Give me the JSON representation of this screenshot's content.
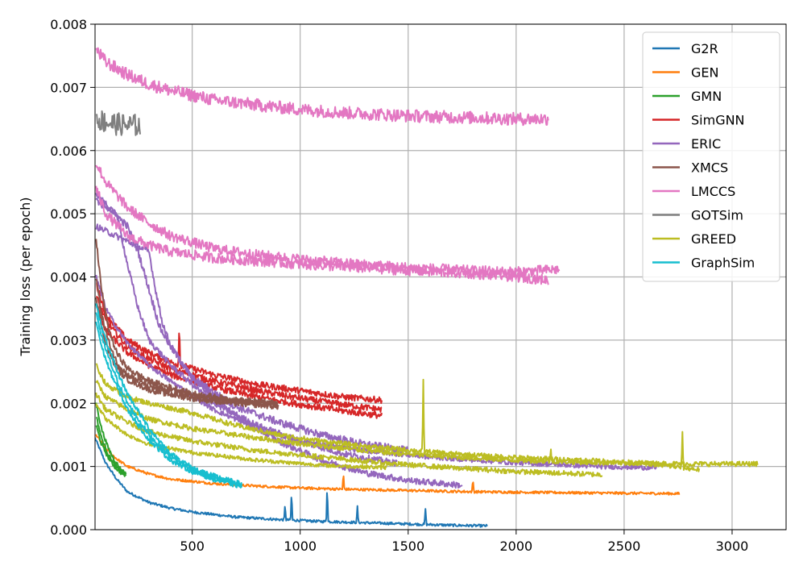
{
  "chart_data": {
    "type": "line",
    "title": "",
    "xlabel": "",
    "ylabel": "Training loss (per epoch)",
    "xlim": [
      50,
      3250
    ],
    "ylim": [
      0.0,
      0.008
    ],
    "x_ticks": [
      500,
      1000,
      1500,
      2000,
      2500,
      3000
    ],
    "y_ticks": [
      0.0,
      0.001,
      0.002,
      0.003,
      0.004,
      0.005,
      0.006,
      0.007,
      0.008
    ],
    "x_tick_labels": [
      "500",
      "1000",
      "1500",
      "2000",
      "2500",
      "3000"
    ],
    "y_tick_labels": [
      "0.000",
      "0.001",
      "0.002",
      "0.003",
      "0.004",
      "0.005",
      "0.006",
      "0.007",
      "0.008"
    ],
    "grid": true,
    "legend_position": "top-right",
    "series": [
      {
        "name": "G2R",
        "color": "#1f77b4",
        "runs": [
          {
            "x": [
              50,
              100,
              150,
              200,
              300,
              400,
              500,
              700,
              900,
              1100,
              1300,
              1500,
              1700,
              1870
            ],
            "y": [
              0.00145,
              0.00105,
              0.0008,
              0.0006,
              0.00043,
              0.00034,
              0.00028,
              0.0002,
              0.00016,
              0.00013,
              0.00011,
              9e-05,
              7e-05,
              6e-05
            ],
            "noise": 2e-05,
            "spikes": [
              [
                930,
                0.00025
              ],
              [
                960,
                0.00045
              ],
              [
                1125,
                0.0006
              ],
              [
                1265,
                0.00025
              ],
              [
                1580,
                0.00025
              ]
            ]
          }
        ]
      },
      {
        "name": "GEN",
        "color": "#ff7f0e",
        "runs": [
          {
            "x": [
              55,
              100,
              150,
              200,
              300,
              400,
              600,
              800,
              1000,
              1200,
              1500,
              1800,
              2100,
              2400,
              2760
            ],
            "y": [
              0.0015,
              0.00128,
              0.00112,
              0.001,
              0.00088,
              0.0008,
              0.00073,
              0.00069,
              0.00066,
              0.00064,
              0.00062,
              0.0006,
              0.00059,
              0.00058,
              0.00057
            ],
            "noise": 2e-05,
            "spikes": [
              [
                1200,
                0.00025
              ],
              [
                1800,
                0.0002
              ]
            ]
          }
        ]
      },
      {
        "name": "GMN",
        "color": "#2ca02c",
        "runs": [
          {
            "x": [
              55,
              80,
              110,
              140,
              170,
              195
            ],
            "y": [
              0.002,
              0.0016,
              0.0013,
              0.0011,
              0.00095,
              0.00088
            ],
            "noise": 3e-05,
            "spikes": []
          },
          {
            "x": [
              55,
              80,
              110,
              140,
              170,
              195
            ],
            "y": [
              0.0018,
              0.00145,
              0.0012,
              0.00102,
              0.00092,
              0.00086
            ],
            "noise": 3e-05,
            "spikes": []
          },
          {
            "x": [
              55,
              80,
              110,
              140,
              170,
              195
            ],
            "y": [
              0.00165,
              0.00135,
              0.00115,
              0.001,
              0.0009,
              0.00085
            ],
            "noise": 3e-05,
            "spikes": []
          }
        ]
      },
      {
        "name": "SimGNN",
        "color": "#d62728",
        "runs": [
          {
            "x": [
              55,
              100,
              200,
              300,
              400,
              600,
              800,
              1000,
              1200,
              1380
            ],
            "y": [
              0.0039,
              0.0034,
              0.003,
              0.0028,
              0.00265,
              0.00245,
              0.0023,
              0.0022,
              0.0021,
              0.00205
            ],
            "noise": 5e-05,
            "spikes": [
              [
                440,
                0.0007
              ]
            ]
          },
          {
            "x": [
              55,
              100,
              200,
              300,
              400,
              600,
              800,
              1000,
              1200,
              1380
            ],
            "y": [
              0.0037,
              0.0033,
              0.0029,
              0.0027,
              0.00255,
              0.00235,
              0.0022,
              0.00208,
              0.00198,
              0.0019
            ],
            "noise": 5e-05,
            "spikes": []
          },
          {
            "x": [
              55,
              100,
              200,
              300,
              400,
              600,
              800,
              1000,
              1200,
              1380
            ],
            "y": [
              0.00355,
              0.00315,
              0.0028,
              0.0026,
              0.00245,
              0.00225,
              0.0021,
              0.00198,
              0.00188,
              0.0018
            ],
            "noise": 5e-05,
            "spikes": []
          }
        ]
      },
      {
        "name": "ERIC",
        "color": "#9467bd",
        "runs": [
          {
            "x": [
              55,
              200,
              250,
              300,
              350,
              400,
              500,
              700,
              900,
              1100,
              1300,
              1500
            ],
            "y": [
              0.0053,
              0.0048,
              0.0044,
              0.0038,
              0.0032,
              0.0029,
              0.0024,
              0.00195,
              0.0017,
              0.0015,
              0.00135,
              0.00125
            ],
            "noise": 6e-05,
            "spikes": []
          },
          {
            "x": [
              55,
              150,
              200,
              250,
              300,
              400,
              600,
              800,
              1000,
              1200,
              1450
            ],
            "y": [
              0.0052,
              0.005,
              0.0042,
              0.0035,
              0.003,
              0.0026,
              0.002,
              0.00165,
              0.0014,
              0.0012,
              0.00105
            ],
            "noise": 5e-05,
            "spikes": []
          },
          {
            "x": [
              55,
              300,
              330,
              360,
              400,
              500,
              700,
              900,
              1100,
              1300,
              1500,
              1750
            ],
            "y": [
              0.0048,
              0.0044,
              0.0038,
              0.0033,
              0.0029,
              0.0024,
              0.0018,
              0.0014,
              0.0011,
              0.0009,
              0.00078,
              0.0007
            ],
            "noise": 5e-05,
            "spikes": []
          },
          {
            "x": [
              55,
              100,
              150,
              200,
              300,
              400,
              600,
              800,
              1000,
              1300,
              1600,
              2000,
              2400,
              2650
            ],
            "y": [
              0.004,
              0.0035,
              0.0032,
              0.00295,
              0.0026,
              0.00235,
              0.0019,
              0.0016,
              0.0014,
              0.00125,
              0.00115,
              0.00106,
              0.001,
              0.00098
            ],
            "noise": 4e-05,
            "spikes": []
          }
        ]
      },
      {
        "name": "XMCS",
        "color": "#8c564b",
        "runs": [
          {
            "x": [
              55,
              80,
              110,
              150,
              200,
              300,
              400,
              500,
              600,
              700,
              800,
              900
            ],
            "y": [
              0.0046,
              0.0038,
              0.0032,
              0.0028,
              0.00255,
              0.00235,
              0.00225,
              0.00215,
              0.0021,
              0.00205,
              0.00203,
              0.002
            ],
            "noise": 5e-05,
            "spikes": []
          },
          {
            "x": [
              55,
              80,
              110,
              150,
              200,
              300,
              400,
              500,
              600,
              700,
              800,
              900
            ],
            "y": [
              0.004,
              0.0034,
              0.003,
              0.00265,
              0.00245,
              0.00228,
              0.00218,
              0.00212,
              0.00207,
              0.00203,
              0.002,
              0.00198
            ],
            "noise": 5e-05,
            "spikes": []
          },
          {
            "x": [
              55,
              80,
              110,
              150,
              200,
              300,
              400,
              500,
              600,
              700,
              800,
              900
            ],
            "y": [
              0.0037,
              0.0032,
              0.00285,
              0.00255,
              0.00238,
              0.00222,
              0.00214,
              0.00208,
              0.00204,
              0.002,
              0.00198,
              0.00195
            ],
            "noise": 5e-05,
            "spikes": []
          }
        ]
      },
      {
        "name": "LMCCS",
        "color": "#e377c2",
        "runs": [
          {
            "x": [
              55,
              100,
              200,
              300,
              400,
              600,
              800,
              1000,
              1200,
              1500,
              1800,
              2000,
              2150
            ],
            "y": [
              0.0076,
              0.0074,
              0.0072,
              0.00705,
              0.00695,
              0.0068,
              0.00672,
              0.00665,
              0.0066,
              0.00655,
              0.00652,
              0.0065,
              0.0065
            ],
            "noise": 0.0001,
            "spikes": []
          },
          {
            "x": [
              55,
              100,
              200,
              300,
              400,
              600,
              800,
              1000,
              1200,
              1500,
              1800,
              2000,
              2200
            ],
            "y": [
              0.0058,
              0.0055,
              0.0051,
              0.00485,
              0.00465,
              0.00445,
              0.00435,
              0.00428,
              0.00422,
              0.00415,
              0.0041,
              0.00408,
              0.00412
            ],
            "noise": 8e-05,
            "spikes": []
          },
          {
            "x": [
              55,
              100,
              200,
              300,
              400,
              600,
              800,
              1000,
              1200,
              1500,
              1800,
              2000,
              2150
            ],
            "y": [
              0.0054,
              0.005,
              0.00465,
              0.0045,
              0.0044,
              0.0043,
              0.00425,
              0.0042,
              0.00416,
              0.0041,
              0.00405,
              0.004,
              0.00395
            ],
            "noise": 8e-05,
            "spikes": []
          }
        ]
      },
      {
        "name": "GOTSim",
        "color": "#7f7f7f",
        "runs": [
          {
            "x": [
              55,
              100,
              150,
              200,
              260
            ],
            "y": [
              0.0065,
              0.00645,
              0.00642,
              0.0064,
              0.0064
            ],
            "noise": 0.00018,
            "spikes": []
          }
        ]
      },
      {
        "name": "GREED",
        "color": "#bcbd22",
        "runs": [
          {
            "x": [
              55,
              100,
              200,
              300,
              500,
              700,
              900,
              1100,
              1300,
              1500,
              1700,
              2000,
              2300,
              2600,
              2850
            ],
            "y": [
              0.0026,
              0.0023,
              0.0021,
              0.002,
              0.00185,
              0.00165,
              0.0015,
              0.0014,
              0.00132,
              0.00126,
              0.0012,
              0.00114,
              0.0011,
              0.00105,
              0.00095
            ],
            "noise": 4e-05,
            "spikes": [
              [
                1570,
                0.0011
              ],
              [
                2770,
                0.00055
              ]
            ]
          },
          {
            "x": [
              55,
              100,
              200,
              300,
              500,
              800,
              1100,
              1400,
              1700,
              2000,
              2400,
              2800,
              3120
            ],
            "y": [
              0.00235,
              0.0021,
              0.0019,
              0.00175,
              0.0016,
              0.00145,
              0.00132,
              0.00122,
              0.00115,
              0.0011,
              0.00106,
              0.00104,
              0.00104
            ],
            "noise": 4e-05,
            "spikes": [
              [
                2160,
                0.0002
              ]
            ]
          },
          {
            "x": [
              55,
              100,
              200,
              300,
              500,
              800,
              1100,
              1400,
              1700,
              2000,
              2400
            ],
            "y": [
              0.00215,
              0.0019,
              0.0017,
              0.00155,
              0.0014,
              0.00125,
              0.00115,
              0.00105,
              0.00098,
              0.00092,
              0.00087
            ],
            "noise": 4e-05,
            "spikes": []
          },
          {
            "x": [
              55,
              100,
              200,
              300,
              500,
              800,
              1100,
              1400
            ],
            "y": [
              0.002,
              0.00175,
              0.0015,
              0.00135,
              0.00122,
              0.0011,
              0.00102,
              0.00098
            ],
            "noise": 3e-05,
            "spikes": []
          }
        ]
      },
      {
        "name": "GraphSim",
        "color": "#17becf",
        "runs": [
          {
            "x": [
              55,
              80,
              120,
              160,
              200,
              300,
              400,
              500,
              600,
              730
            ],
            "y": [
              0.0036,
              0.0032,
              0.0028,
              0.00245,
              0.00215,
              0.0016,
              0.0012,
              0.00098,
              0.00085,
              0.00072
            ],
            "noise": 4e-05,
            "spikes": []
          },
          {
            "x": [
              55,
              80,
              120,
              160,
              200,
              300,
              400,
              500,
              600,
              730
            ],
            "y": [
              0.00345,
              0.00305,
              0.00265,
              0.0023,
              0.002,
              0.0015,
              0.00115,
              0.00095,
              0.00082,
              0.0007
            ],
            "noise": 4e-05,
            "spikes": []
          },
          {
            "x": [
              55,
              80,
              120,
              160,
              200,
              300,
              400,
              500,
              600,
              730
            ],
            "y": [
              0.0033,
              0.0029,
              0.0025,
              0.0022,
              0.0019,
              0.00142,
              0.0011,
              0.00092,
              0.0008,
              0.00068
            ],
            "noise": 4e-05,
            "spikes": []
          }
        ]
      }
    ]
  }
}
